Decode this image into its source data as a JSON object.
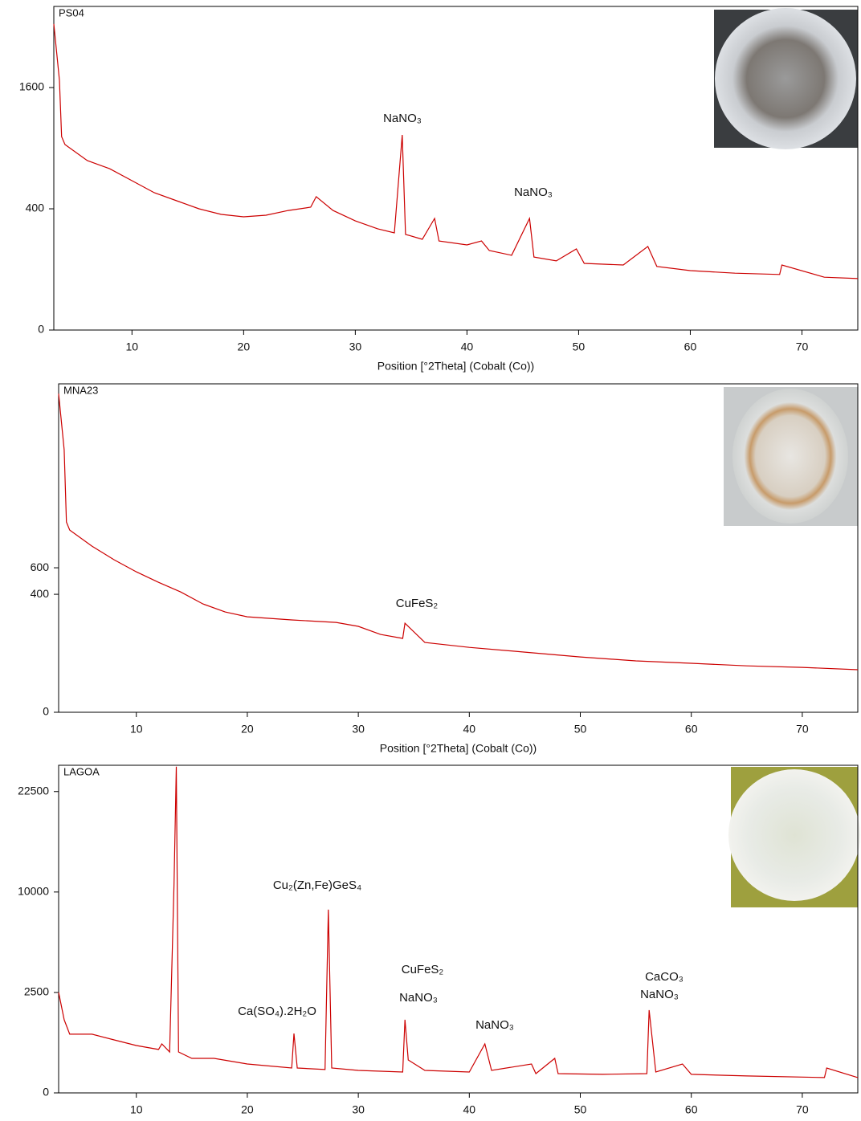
{
  "chart_data": [
    {
      "type": "line",
      "title": "PS04",
      "xlabel": "Position [°2Theta] (Cobalt (Co))",
      "color": "#cc0000",
      "yscale": "sqrt",
      "xlim": [
        3,
        75
      ],
      "ylim": [
        0,
        2850
      ],
      "xticks": [
        10,
        20,
        30,
        40,
        50,
        60,
        70
      ],
      "yticks": [
        0,
        400,
        1600
      ],
      "annotations": [
        "NaNO₃",
        "NaNO₃"
      ],
      "x": [
        3,
        3.5,
        3.7,
        4,
        6,
        8,
        10,
        12,
        14,
        16,
        18,
        20,
        22,
        24,
        26,
        26.5,
        28,
        30,
        32,
        33.5,
        34.2,
        34.5,
        36,
        37.1,
        37.5,
        40,
        41.3,
        42,
        44,
        45.6,
        46,
        48,
        49.8,
        50.5,
        54,
        56.2,
        57,
        60,
        64,
        68,
        68.2,
        72,
        75
      ],
      "values": [
        2550,
        1697,
        1018,
        936,
        781,
        708,
        607,
        513,
        455,
        400,
        364,
        349,
        359,
        389,
        411,
        484,
        389,
        324,
        279,
        257,
        1036,
        249,
        224,
        339,
        216,
        197,
        216,
        172,
        152,
        339,
        145,
        130,
        179,
        121,
        115,
        190,
        110,
        96,
        88,
        84,
        115,
        76,
        72
      ]
    },
    {
      "type": "line",
      "title": "MNA23",
      "xlabel": "Position [°2Theta] (Cobalt (Co))",
      "color": "#cc0000",
      "yscale": "sqrt",
      "xlim": [
        3,
        75
      ],
      "ylim": [
        0,
        3100
      ],
      "xticks": [
        10,
        20,
        30,
        40,
        50,
        60,
        70
      ],
      "yticks": [
        0,
        400,
        600
      ],
      "annotations": [
        "CuFeS₂"
      ],
      "x": [
        3,
        3.5,
        3.7,
        4,
        6,
        8,
        10,
        12,
        14,
        16,
        18,
        20,
        24,
        28,
        30,
        32,
        34,
        34.2,
        36,
        40,
        45,
        50,
        55,
        60,
        65,
        70,
        75
      ],
      "values": [
        2916,
        1979,
        1040,
        954,
        793,
        668,
        567,
        485,
        416,
        337,
        289,
        262,
        245,
        232,
        212,
        174,
        157,
        228,
        140,
        121,
        104,
        88,
        76,
        69,
        62,
        58,
        52
      ]
    },
    {
      "type": "line",
      "title": "LAGOA",
      "color": "#cc0000",
      "yscale": "sqrt",
      "xlim": [
        3,
        75
      ],
      "ylim": [
        0,
        26600
      ],
      "xticks": [
        10,
        20,
        30,
        40,
        50,
        60,
        70
      ],
      "yticks": [
        0,
        2500,
        10000,
        22500
      ],
      "annotations": [
        "Cu₂(Zn,Fe)GeS₄",
        "Ca(SO₄).2H₂O",
        "CuFeS₂",
        "NaNO₃",
        "NaNO₃",
        "CaCO₃",
        "NaNO₃"
      ],
      "x": [
        3,
        3.5,
        4,
        6,
        8,
        10,
        12,
        12.3,
        13,
        13.4,
        13.6,
        13.8,
        15,
        17,
        20,
        24,
        24.2,
        24.5,
        27,
        27.3,
        27.6,
        30,
        34,
        34.2,
        34.5,
        36,
        40,
        41.4,
        42,
        45.6,
        46,
        47.7,
        48,
        52,
        56,
        56.2,
        56.8,
        59.2,
        60,
        65,
        72,
        72.2,
        75
      ],
      "values": [
        2500,
        1325,
        853,
        853,
        697,
        557,
        467,
        595,
        416,
        10900,
        26370,
        416,
        296,
        296,
        207,
        154,
        876,
        154,
        135,
        8318,
        154,
        125,
        108,
        1325,
        269,
        125,
        108,
        595,
        125,
        207,
        92,
        296,
        92,
        85,
        92,
        1697,
        108,
        207,
        85,
        71,
        58,
        154,
        58
      ]
    }
  ]
}
